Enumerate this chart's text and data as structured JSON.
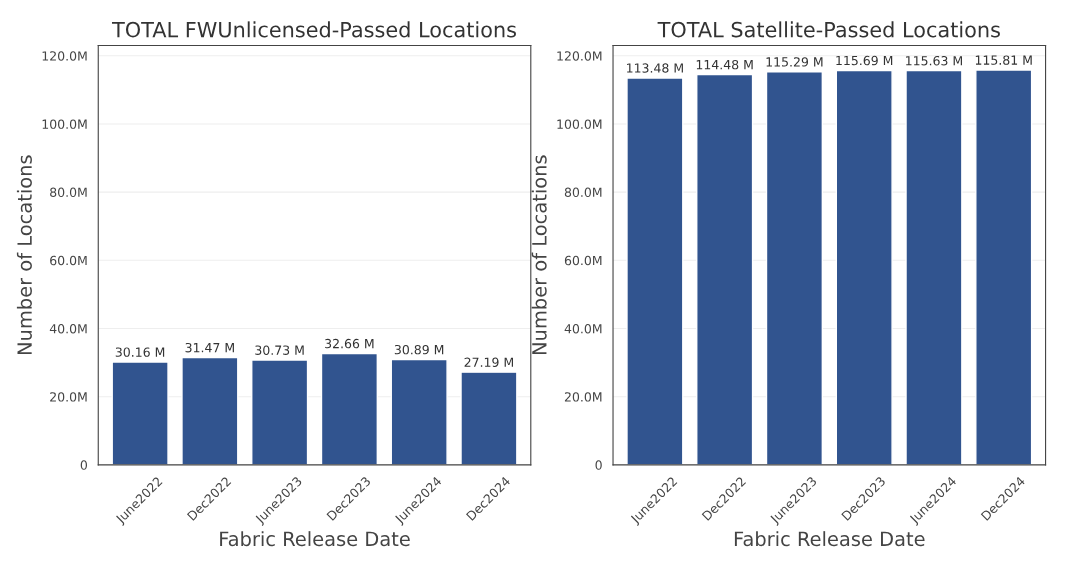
{
  "chart_data": [
    {
      "type": "bar",
      "title": "TOTAL FWUnlicensed-Passed Locations",
      "xlabel": "Fabric Release Date",
      "ylabel": "Number of Locations",
      "categories": [
        "June2022",
        "Dec2022",
        "June2023",
        "Dec2023",
        "June2024",
        "Dec2024"
      ],
      "values": [
        30.16,
        31.47,
        30.73,
        32.66,
        30.89,
        27.19
      ],
      "value_labels": [
        "30.16 M",
        "31.47 M",
        "30.73 M",
        "32.66 M",
        "30.89 M",
        "27.19 M"
      ],
      "color": "#31548f",
      "ylim": [
        0,
        123
      ],
      "yticks": [
        {
          "value": 0,
          "label": "0"
        },
        {
          "value": 20,
          "label": "20.0M"
        },
        {
          "value": 40,
          "label": "40.0M"
        },
        {
          "value": 60,
          "label": "60.0M"
        },
        {
          "value": 80,
          "label": "80.0M"
        },
        {
          "value": 100,
          "label": "100.0M"
        },
        {
          "value": 120,
          "label": "120.0M"
        }
      ],
      "grid": "y"
    },
    {
      "type": "bar",
      "title": "TOTAL Satellite-Passed Locations",
      "xlabel": "Fabric Release Date",
      "ylabel": "Number of Locations",
      "categories": [
        "June2022",
        "Dec2022",
        "June2023",
        "Dec2023",
        "June2024",
        "Dec2024"
      ],
      "values": [
        113.48,
        114.48,
        115.29,
        115.69,
        115.63,
        115.81
      ],
      "value_labels": [
        "113.48 M",
        "114.48 M",
        "115.29 M",
        "115.69 M",
        "115.63 M",
        "115.81 M"
      ],
      "color": "#31548f",
      "ylim": [
        0,
        123
      ],
      "yticks": [
        {
          "value": 0,
          "label": "0"
        },
        {
          "value": 20,
          "label": "20.0M"
        },
        {
          "value": 40,
          "label": "40.0M"
        },
        {
          "value": 60,
          "label": "60.0M"
        },
        {
          "value": 80,
          "label": "80.0M"
        },
        {
          "value": 100,
          "label": "100.0M"
        },
        {
          "value": 120,
          "label": "120.0M"
        }
      ],
      "grid": "y"
    }
  ]
}
